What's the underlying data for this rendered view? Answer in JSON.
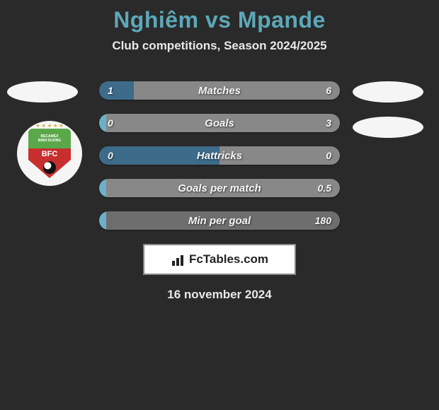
{
  "title": "Nghiêm vs Mpande",
  "subtitle": "Club competitions, Season 2024/2025",
  "date": "16 november 2024",
  "brand_text": "FcTables.com",
  "colors": {
    "background": "#2a2a2a",
    "title_color": "#5da8b8",
    "text_color": "#e8e8e8",
    "left_bar_default": "#3d6b8a",
    "left_bar_alt": "#6bb0c9",
    "right_bar": "#888888",
    "right_bar_alt": "#6e6e6e",
    "badge_green": "#5aa84a",
    "badge_red": "#c92e2e",
    "avatar_bg": "#f5f5f5"
  },
  "badge": {
    "line1": "BECAMEX",
    "line2": "BINH DUONG",
    "code": "BFC"
  },
  "stats": [
    {
      "label": "Matches",
      "left_val": "1",
      "right_val": "6",
      "left_pct": 14.3,
      "right_pct": 85.7,
      "left_color": "#3d6b8a",
      "right_color": "#888888"
    },
    {
      "label": "Goals",
      "left_val": "0",
      "right_val": "3",
      "left_pct": 3,
      "right_pct": 97,
      "left_color": "#6bb0c9",
      "right_color": "#888888"
    },
    {
      "label": "Hattricks",
      "left_val": "0",
      "right_val": "0",
      "left_pct": 50,
      "right_pct": 50,
      "left_color": "#3d6b8a",
      "right_color": "#888888"
    },
    {
      "label": "Goals per match",
      "left_val": "",
      "right_val": "0.5",
      "left_pct": 3,
      "right_pct": 97,
      "left_color": "#6bb0c9",
      "right_color": "#888888"
    },
    {
      "label": "Min per goal",
      "left_val": "",
      "right_val": "180",
      "left_pct": 3,
      "right_pct": 97,
      "left_color": "#6bb0c9",
      "right_color": "#6e6e6e"
    }
  ]
}
